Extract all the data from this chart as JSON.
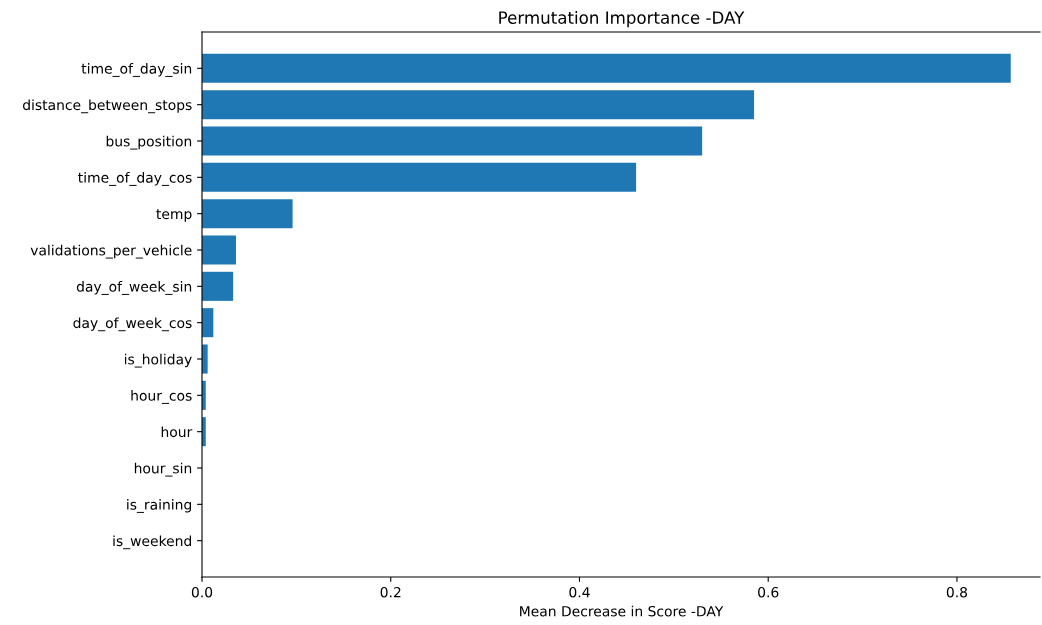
{
  "chart_data": {
    "type": "bar",
    "orientation": "horizontal",
    "title": "Permutation Importance -DAY",
    "xlabel": "Mean Decrease in Score -DAY",
    "categories": [
      "time_of_day_sin",
      "distance_between_stops",
      "bus_position",
      "time_of_day_cos",
      "temp",
      "validations_per_vehicle",
      "day_of_week_sin",
      "day_of_week_cos",
      "is_holiday",
      "hour_cos",
      "hour",
      "hour_sin",
      "is_raining",
      "is_weekend"
    ],
    "values": [
      0.857,
      0.585,
      0.53,
      0.46,
      0.096,
      0.036,
      0.033,
      0.012,
      0.006,
      0.004,
      0.004,
      0,
      0,
      0
    ],
    "color": "#1f77b4",
    "xlim": [
      0,
      0.888
    ],
    "xticks": [
      {
        "value": 0,
        "label": "0.0"
      },
      {
        "value": 0.2,
        "label": "0.2"
      },
      {
        "value": 0.4,
        "label": "0.4"
      },
      {
        "value": 0.6,
        "label": "0.6"
      },
      {
        "value": 0.8,
        "label": "0.8"
      }
    ],
    "grid": false
  }
}
